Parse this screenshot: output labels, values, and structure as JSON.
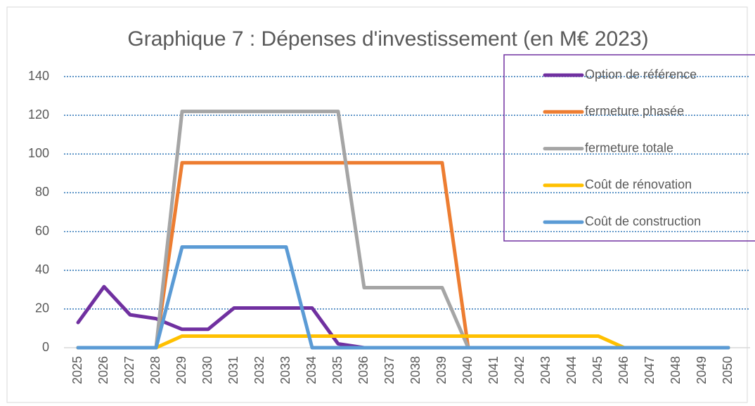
{
  "chart_data": {
    "type": "line",
    "title": "Graphique 7 : Dépenses d'investissement (en M€ 2023)",
    "categories": [
      "2025",
      "2026",
      "2027",
      "2028",
      "2029",
      "2030",
      "2031",
      "2032",
      "2033",
      "2034",
      "2035",
      "2036",
      "2037",
      "2038",
      "2039",
      "2040",
      "2041",
      "2042",
      "2043",
      "2044",
      "2045",
      "2046",
      "2047",
      "2048",
      "2049",
      "2050"
    ],
    "series": [
      {
        "name": "Option de référence",
        "color": "#7030a0",
        "values": [
          13,
          31.5,
          17,
          15,
          9.5,
          9.5,
          20.5,
          20.5,
          20.5,
          20.5,
          2,
          0,
          0,
          0,
          0,
          0,
          0,
          0,
          0,
          0,
          0,
          0,
          0,
          0,
          0,
          0
        ]
      },
      {
        "name": "fermeture phasée",
        "color": "#ed7d31",
        "values": [
          0,
          0,
          0,
          0,
          95.5,
          95.5,
          95.5,
          95.5,
          95.5,
          95.5,
          95.5,
          95.5,
          95.5,
          95.5,
          95.5,
          0,
          0,
          0,
          0,
          0,
          0,
          0,
          0,
          0,
          0,
          0
        ]
      },
      {
        "name": "fermeture totale",
        "color": "#a5a5a5",
        "values": [
          0,
          0,
          0,
          0,
          122,
          122,
          122,
          122,
          122,
          122,
          122,
          31,
          31,
          31,
          31,
          0,
          0,
          0,
          0,
          0,
          0,
          0,
          0,
          0,
          0,
          0
        ]
      },
      {
        "name": "Coût de rénovation",
        "color": "#ffc000",
        "values": [
          0,
          0,
          0,
          0,
          6,
          6,
          6,
          6,
          6,
          6,
          6,
          6,
          6,
          6,
          6,
          6,
          6,
          6,
          6,
          6,
          6,
          0,
          0,
          0,
          0,
          0
        ]
      },
      {
        "name": "Coût de construction",
        "color": "#5b9bd5",
        "values": [
          0,
          0,
          0,
          0,
          52,
          52,
          52,
          52,
          52,
          0,
          0,
          0,
          0,
          0,
          0,
          0,
          0,
          0,
          0,
          0,
          0,
          0,
          0,
          0,
          0,
          0
        ]
      }
    ],
    "ylim": [
      0,
      140
    ],
    "yticks": [
      0,
      20,
      40,
      60,
      80,
      100,
      120,
      140
    ],
    "grid": true
  }
}
